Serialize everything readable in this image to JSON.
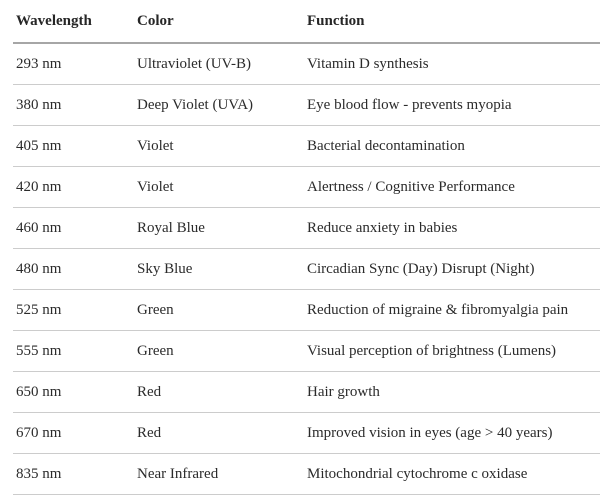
{
  "chart_data": {
    "type": "table",
    "columns": [
      "Wavelength",
      "Color",
      "Function"
    ],
    "rows": [
      {
        "wavelength": "293 nm",
        "color": "Ultraviolet (UV-B)",
        "function": "Vitamin D synthesis"
      },
      {
        "wavelength": "380 nm",
        "color": "Deep Violet (UVA)",
        "function": "Eye blood flow - prevents myopia"
      },
      {
        "wavelength": "405 nm",
        "color": "Violet",
        "function": "Bacterial decontamination"
      },
      {
        "wavelength": "420 nm",
        "color": "Violet",
        "function": "Alertness / Cognitive Performance"
      },
      {
        "wavelength": "460 nm",
        "color": "Royal Blue",
        "function": "Reduce anxiety in babies"
      },
      {
        "wavelength": "480 nm",
        "color": "Sky Blue",
        "function": "Circadian Sync (Day) Disrupt (Night)"
      },
      {
        "wavelength": "525 nm",
        "color": "Green",
        "function": "Reduction of migraine & fibromyalgia pain"
      },
      {
        "wavelength": "555 nm",
        "color": "Green",
        "function": "Visual perception of brightness (Lumens)"
      },
      {
        "wavelength": "650 nm",
        "color": "Red",
        "function": "Hair growth"
      },
      {
        "wavelength": "670 nm",
        "color": "Red",
        "function": "Improved vision in eyes (age > 40 years)"
      },
      {
        "wavelength": "835 nm",
        "color": "Near Infrared",
        "function": "Mitochondrial cytochrome c oxidase"
      }
    ]
  },
  "colors": {
    "text": "#2b2b2b",
    "header_border": "#a6a6a6",
    "row_border": "#cccccc",
    "background": "#ffffff"
  }
}
